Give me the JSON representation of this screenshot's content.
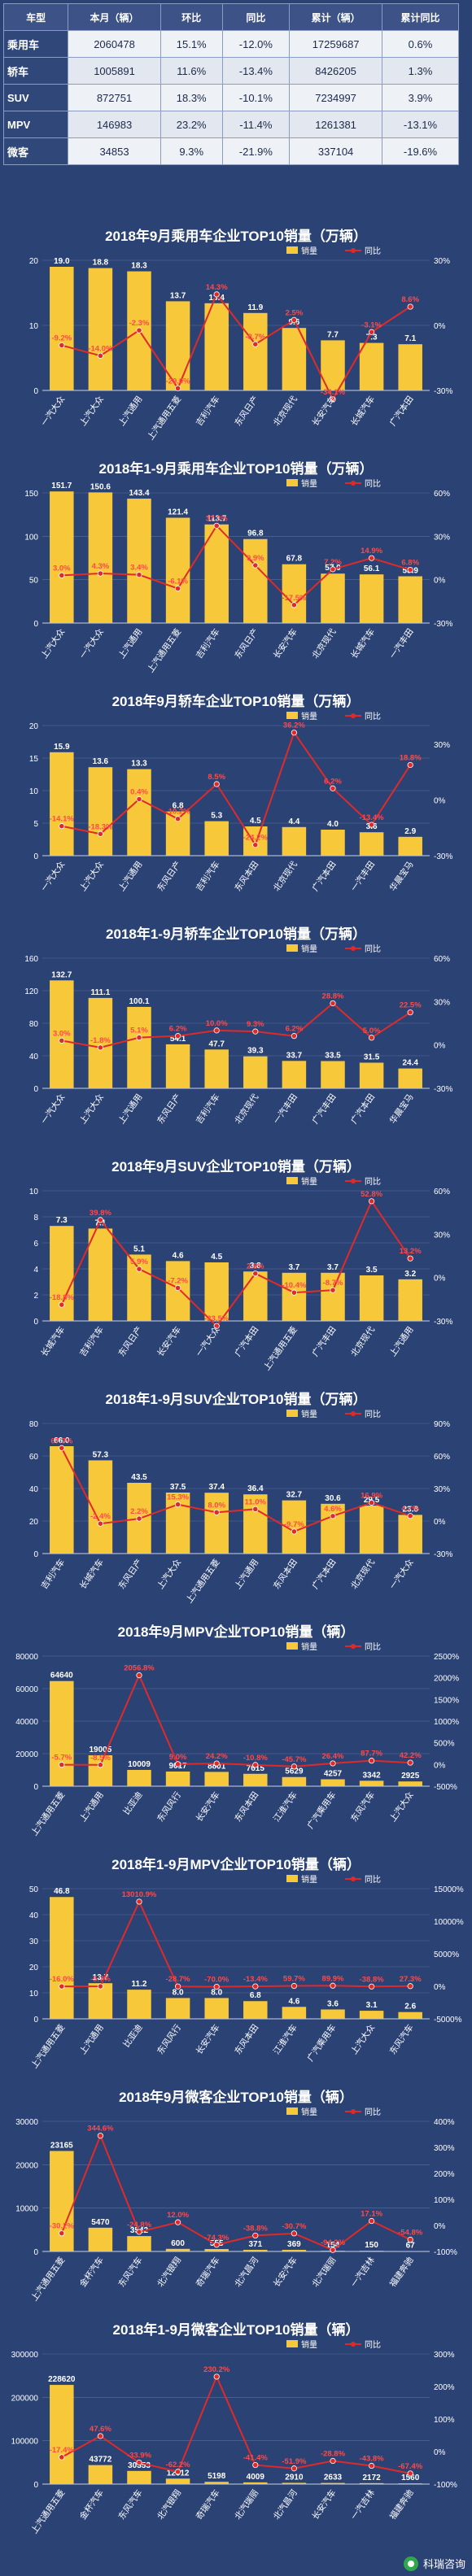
{
  "summary": {
    "headers": [
      "车型",
      "本月（辆）",
      "环比",
      "同比",
      "累计（辆）",
      "累计同比"
    ],
    "rows": [
      [
        "乘用车",
        "2060478",
        "15.1%",
        "-12.0%",
        "17259687",
        "0.6%"
      ],
      [
        "轿车",
        "1005891",
        "11.6%",
        "-13.4%",
        "8426205",
        "1.3%"
      ],
      [
        "SUV",
        "872751",
        "18.3%",
        "-10.1%",
        "7234997",
        "3.9%"
      ],
      [
        "MPV",
        "146983",
        "23.2%",
        "-11.4%",
        "1261381",
        "-13.1%"
      ],
      [
        "微客",
        "34853",
        "9.3%",
        "-21.9%",
        "337104",
        "-19.6%"
      ]
    ]
  },
  "legend": {
    "bar": "销量",
    "line": "同比"
  },
  "footer": {
    "brand": "科瑞咨询"
  },
  "colors": {
    "background": "#2b4274",
    "bar": "#f6c83a",
    "line": "#e02a2a",
    "grid": "#5a6f9c"
  },
  "chart_data": [
    {
      "type": "bar",
      "title": "2018年9月乘用车企业TOP10销量（万辆）",
      "categories": [
        "一汽大众",
        "上汽大众",
        "上汽通用",
        "上汽通用五菱",
        "吉利汽车",
        "东风日产",
        "北京现代",
        "长安汽车",
        "长城汽车",
        "广汽本田"
      ],
      "bars": [
        19.0,
        18.8,
        18.3,
        13.7,
        13.4,
        11.9,
        9.6,
        7.7,
        7.3,
        7.1
      ],
      "bar_labels": [
        "19.0",
        "18.8",
        "18.3",
        "13.7",
        "13.4",
        "11.9",
        "9.6",
        "7.7",
        "7.3",
        "7.1"
      ],
      "line": [
        -9.2,
        -14.0,
        -2.3,
        -29.0,
        14.3,
        -8.7,
        2.5,
        -34.1,
        -3.1,
        8.6
      ],
      "line_labels": [
        "-9.2%",
        "-14.0%",
        "-2.3%",
        "-29.0%",
        "14.3%",
        "-8.7%",
        "2.5%",
        "-34.1%",
        "-3.1%",
        "8.6%"
      ],
      "y_left": [
        0,
        10,
        20
      ],
      "y_right": [
        "-30%",
        "0%",
        "30%"
      ],
      "ylim": [
        0,
        20
      ],
      "y2lim": [
        -30,
        30
      ]
    },
    {
      "type": "bar",
      "title": "2018年1-9月乘用车企业TOP10销量（万辆）",
      "categories": [
        "上汽大众",
        "一汽大众",
        "上汽通用",
        "上汽通用五菱",
        "吉利汽车",
        "东风日产",
        "长安汽车",
        "北京现代",
        "长城汽车",
        "一汽丰田"
      ],
      "bars": [
        151.7,
        150.6,
        143.4,
        121.4,
        113.7,
        96.8,
        67.8,
        57.0,
        56.1,
        53.9
      ],
      "bar_labels": [
        "151.7",
        "150.6",
        "143.4",
        "121.4",
        "113.7",
        "96.8",
        "67.8",
        "57.0",
        "56.1",
        "53.9"
      ],
      "line": [
        3.0,
        4.3,
        3.4,
        -6.1,
        37.3,
        9.9,
        -17.5,
        7.2,
        14.9,
        6.8
      ],
      "line_labels": [
        "3.0%",
        "4.3%",
        "3.4%",
        "-6.1%",
        "37.3%",
        "9.9%",
        "-17.5%",
        "7.2%",
        "14.9%",
        "6.8%"
      ],
      "y_left": [
        0,
        50,
        100,
        150
      ],
      "y_right": [
        "-30%",
        "0%",
        "30%",
        "60%"
      ],
      "ylim": [
        0,
        150
      ],
      "y2lim": [
        -30,
        60
      ]
    },
    {
      "type": "bar",
      "title": "2018年9月轿车企业TOP10销量（万辆）",
      "categories": [
        "一汽大众",
        "上汽大众",
        "上汽通用",
        "东风日产",
        "吉利汽车",
        "东风本田",
        "北京现代",
        "广汽本田",
        "一汽丰田",
        "华晨宝马"
      ],
      "bars": [
        15.9,
        13.6,
        13.3,
        6.8,
        5.3,
        4.5,
        4.4,
        4.0,
        3.6,
        2.9
      ],
      "bar_labels": [
        "15.9",
        "13.6",
        "13.3",
        "6.8",
        "5.3",
        "4.5",
        "4.4",
        "4.0",
        "3.6",
        "2.9"
      ],
      "line": [
        -14.1,
        -18.3,
        0.4,
        -10.2,
        8.5,
        -24.2,
        36.2,
        6.2,
        -13.4,
        18.8
      ],
      "line_labels": [
        "-14.1%",
        "-18.3%",
        "0.4%",
        "-10.2%",
        "8.5%",
        "-24.2%",
        "36.2%",
        "6.2%",
        "-13.4%",
        "18.8%"
      ],
      "y_left": [
        0,
        5,
        10,
        15,
        20
      ],
      "y_right": [
        "-30%",
        "0%",
        "30%"
      ],
      "ylim": [
        0,
        20
      ],
      "y2lim": [
        -30,
        40
      ]
    },
    {
      "type": "bar",
      "title": "2018年1-9月轿车企业TOP10销量（万辆）",
      "categories": [
        "一汽大众",
        "上汽大众",
        "上汽通用",
        "东风日产",
        "吉利汽车",
        "北京现代",
        "一汽丰田",
        "广汽丰田",
        "广汽本田",
        "华晨宝马"
      ],
      "bars": [
        132.7,
        111.1,
        100.1,
        54.1,
        47.7,
        39.3,
        33.7,
        33.5,
        31.5,
        24.4
      ],
      "bar_labels": [
        "132.7",
        "111.1",
        "100.1",
        "54.1",
        "47.7",
        "39.3",
        "33.7",
        "33.5",
        "31.5",
        "24.4"
      ],
      "line": [
        3.0,
        -1.8,
        5.1,
        6.2,
        10.0,
        9.3,
        6.2,
        28.8,
        5.0,
        22.5
      ],
      "line_labels": [
        "3.0%",
        "-1.8%",
        "5.1%",
        "6.2%",
        "10.0%",
        "9.3%",
        "6.2%",
        "28.8%",
        "5.0%",
        "22.5%"
      ],
      "y_left": [
        0,
        40,
        80,
        120,
        160
      ],
      "y_right": [
        "-30%",
        "0%",
        "30%",
        "60%"
      ],
      "ylim": [
        0,
        160
      ],
      "y2lim": [
        -30,
        60
      ]
    },
    {
      "type": "bar",
      "title": "2018年9月SUV企业TOP10销量（万辆）",
      "categories": [
        "长城汽车",
        "吉利汽车",
        "东风日产",
        "长安汽车",
        "一汽大众",
        "广汽本田",
        "上汽通用五菱",
        "广汽丰田",
        "北京现代",
        "上汽通用"
      ],
      "bars": [
        7.3,
        7.1,
        5.1,
        4.6,
        4.5,
        3.8,
        3.7,
        3.7,
        3.5,
        3.2
      ],
      "bar_labels": [
        "7.3",
        "7.1",
        "5.1",
        "4.6",
        "4.5",
        "3.8",
        "3.7",
        "3.7",
        "3.5",
        "3.2"
      ],
      "line": [
        -18.8,
        39.8,
        5.9,
        -7.2,
        -33.5,
        2.8,
        -10.4,
        -8.7,
        52.8,
        13.2
      ],
      "line_labels": [
        "-18.8%",
        "39.8%",
        "5.9%",
        "-7.2%",
        "-33.5%",
        "2.8%",
        "-10.4%",
        "-8.7%",
        "52.8%",
        "13.2%"
      ],
      "y_left": [
        0,
        2,
        4,
        6,
        8,
        10
      ],
      "y_right": [
        "-30%",
        "0%",
        "30%",
        "60%"
      ],
      "ylim": [
        0,
        10
      ],
      "y2lim": [
        -30,
        60
      ]
    },
    {
      "type": "bar",
      "title": "2018年1-9月SUV企业TOP10销量（万辆）",
      "categories": [
        "吉利汽车",
        "长城汽车",
        "东风日产",
        "上汽大众",
        "上汽通用五菱",
        "上汽通用",
        "东风本田",
        "广汽本田",
        "北京现代",
        "一汽大众"
      ],
      "bars": [
        66.0,
        57.3,
        43.5,
        37.5,
        37.4,
        36.4,
        32.7,
        30.6,
        29.5,
        23.8
      ],
      "bar_labels": [
        "66.0",
        "57.3",
        "43.5",
        "37.5",
        "37.4",
        "36.4",
        "32.7",
        "30.6",
        "29.5",
        "23.8"
      ],
      "line": [
        67.3,
        -2.4,
        2.2,
        15.3,
        8.0,
        11.0,
        -9.7,
        4.6,
        16.9,
        4.7
      ],
      "line_labels": [
        "67.3%",
        "-2.4%",
        "2.2%",
        "15.3%",
        "8.0%",
        "11.0%",
        "-9.7%",
        "4.6%",
        "16.9%",
        "4.7%"
      ],
      "y_left": [
        0,
        20,
        40,
        60,
        80
      ],
      "y_right": [
        "-30%",
        "0%",
        "30%",
        "60%",
        "90%"
      ],
      "ylim": [
        0,
        80
      ],
      "y2lim": [
        -30,
        90
      ]
    },
    {
      "type": "bar",
      "title": "2018年9月MPV企业TOP10销量（辆）",
      "categories": [
        "上汽通用五菱",
        "上汽通用",
        "比亚迪",
        "东风风行",
        "长安汽车",
        "东风本田",
        "江淮汽车",
        "广汽乘用车",
        "东风汽车",
        "上汽大众"
      ],
      "bars": [
        64640,
        19005,
        10009,
        9017,
        8801,
        7615,
        5629,
        4257,
        3342,
        2925
      ],
      "bar_labels": [
        "64640",
        "19005",
        "10009",
        "9017",
        "8801",
        "7615",
        "5629",
        "4257",
        "3342",
        "2925"
      ],
      "line": [
        -5.7,
        -8.5,
        2056.8,
        9.0,
        24.2,
        -10.8,
        -45.7,
        26.4,
        87.7,
        42.2
      ],
      "line_labels": [
        "-5.7%",
        "-8.5%",
        "2056.8%",
        "9.0%",
        "24.2%",
        "-10.8%",
        "-45.7%",
        "26.4%",
        "87.7%",
        "42.2%"
      ],
      "y_left": [
        0,
        20000,
        40000,
        60000,
        80000
      ],
      "y_right": [
        "-500%",
        "0%",
        "500%",
        "1000%",
        "1500%",
        "2000%",
        "2500%"
      ],
      "ylim": [
        0,
        80000
      ],
      "y2lim": [
        -500,
        2500
      ]
    },
    {
      "type": "bar",
      "title": "2018年1-9月MPV企业TOP10销量（辆）",
      "categories": [
        "上汽通用五菱",
        "上汽通用",
        "比亚迪",
        "东风风行",
        "长安汽车",
        "东风本田",
        "江淮汽车",
        "广汽乘用车",
        "上汽大众",
        "东风汽车"
      ],
      "bars": [
        46.8,
        13.7,
        11.2,
        8.0,
        8.0,
        6.8,
        4.6,
        3.6,
        3.1,
        2.6
      ],
      "bar_labels": [
        "46.8",
        "13.7",
        "11.2",
        "8.0",
        "8.0",
        "6.8",
        "4.6",
        "3.6",
        "3.1",
        "2.6"
      ],
      "line": [
        -16.0,
        -5.7,
        13010.9,
        -28.7,
        -70.0,
        -13.4,
        59.7,
        89.9,
        -38.8,
        27.3
      ],
      "line_labels": [
        "-16.0%",
        "-5.7%",
        "13010.9%",
        "-28.7%",
        "-70.0%",
        "-13.4%",
        "59.7%",
        "89.9%",
        "-38.8%",
        "27.3%"
      ],
      "y_left": [
        0,
        10,
        20,
        30,
        40,
        50
      ],
      "y_right": [
        "-5000%",
        "0%",
        "5000%",
        "10000%",
        "15000%"
      ],
      "ylim": [
        0,
        50
      ],
      "y2lim": [
        -5000,
        15000
      ]
    },
    {
      "type": "bar",
      "title": "2018年9月微客企业TOP10销量（辆）",
      "categories": [
        "上汽通用五菱",
        "金杯汽车",
        "东风汽车",
        "北汽银翔",
        "奇瑞汽车",
        "北汽昌河",
        "长安汽车",
        "北汽瑞丽",
        "一汽吉林",
        "福建奔驰"
      ],
      "bars": [
        23165,
        5470,
        3542,
        600,
        555,
        371,
        369,
        154,
        150,
        67
      ],
      "bar_labels": [
        "23165",
        "5470",
        "3542",
        "600",
        "555",
        "371",
        "369",
        "154",
        "150",
        "67"
      ],
      "line": [
        -30.2,
        344.6,
        -24.8,
        12.0,
        -74.3,
        -38.8,
        -30.7,
        -94.2,
        17.1,
        -54.8
      ],
      "line_labels": [
        "-30.2%",
        "344.6%",
        "-24.8%",
        "12.0%",
        "-74.3%",
        "-38.8%",
        "-30.7%",
        "-94.2%",
        "17.1%",
        "-54.8%"
      ],
      "y_left": [
        0,
        10000,
        20000,
        30000
      ],
      "y_right": [
        "-100%",
        "0%",
        "100%",
        "200%",
        "300%",
        "400%"
      ],
      "ylim": [
        0,
        30000
      ],
      "y2lim": [
        -100,
        400
      ]
    },
    {
      "type": "bar",
      "title": "2018年1-9月微客企业TOP10销量（辆）",
      "categories": [
        "上汽通用五菱",
        "金杯汽车",
        "东风汽车",
        "北汽银翔",
        "奇瑞汽车",
        "北汽瑞丽",
        "北汽昌河",
        "长安汽车",
        "一汽吉林",
        "福建奔驰"
      ],
      "bars": [
        228620,
        43772,
        30353,
        12612,
        5198,
        4009,
        2910,
        2633,
        2172,
        1560
      ],
      "bar_labels": [
        "228620",
        "43772",
        "30353",
        "12612",
        "5198",
        "4009",
        "2910",
        "2633",
        "2172",
        "1560"
      ],
      "line": [
        -17.4,
        47.6,
        -33.9,
        -62.2,
        230.2,
        -41.4,
        -51.9,
        -28.8,
        -43.8,
        -67.4
      ],
      "line_labels": [
        "-17.4%",
        "47.6%",
        "-33.9%",
        "-62.2%",
        "230.2%",
        "-41.4%",
        "-51.9%",
        "-28.8%",
        "-43.8%",
        "-67.4%"
      ],
      "y_left": [
        0,
        100000,
        200000,
        300000
      ],
      "y_right": [
        "-100%",
        "0%",
        "100%",
        "200%",
        "300%"
      ],
      "ylim": [
        0,
        300000
      ],
      "y2lim": [
        -100,
        300
      ]
    }
  ]
}
